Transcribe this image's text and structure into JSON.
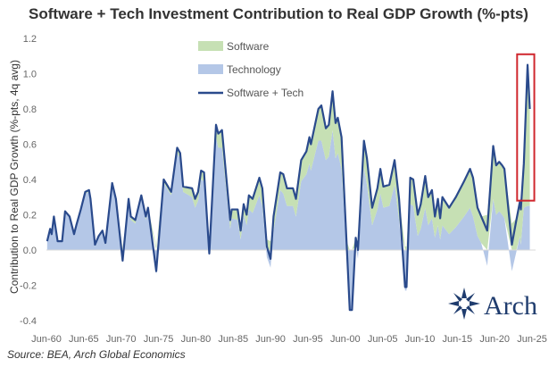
{
  "chart_data": {
    "type": "area",
    "title": "Software + Tech Investment Contribution to Real GDP Growth (%-pts)",
    "xlabel": "",
    "ylabel": "Contribution to Real GDP Growth (%-pts, 4q avg)",
    "ylim": [
      -0.4,
      1.2
    ],
    "yticks": [
      1.2,
      1.0,
      0.8,
      0.6,
      0.4,
      0.2,
      0.0,
      -0.2,
      -0.4
    ],
    "ytick_labels": [
      "1.2",
      "1.0",
      "0.8",
      "0.6",
      "0.4",
      "0.2",
      "0.0",
      "-0.2",
      "-0.4"
    ],
    "xlim": [
      1959.5,
      2026
    ],
    "xticks": [
      1960,
      1965,
      1970,
      1975,
      1980,
      1985,
      1990,
      1995,
      2000,
      2005,
      2010,
      2015,
      2020,
      2025
    ],
    "xtick_labels": [
      "Jun-60",
      "Jun-65",
      "Jun-70",
      "Jun-75",
      "Jun-80",
      "Jun-85",
      "Jun-90",
      "Jun-95",
      "Jun-00",
      "Jun-05",
      "Jun-10",
      "Jun-15",
      "Jun-20",
      "Jun-25"
    ],
    "grid": false,
    "legend_position": "top-center",
    "colors": {
      "software": "#c6e0b4",
      "technology": "#b4c7e7",
      "total": "#2a4a8c",
      "highlight": "#d0272e"
    },
    "series_names": {
      "software": "Software",
      "technology": "Technology",
      "total": "Software + Tech"
    },
    "x": [
      1960.1,
      1960.5,
      1960.7,
      1961.0,
      1961.5,
      1962.1,
      1962.5,
      1963.1,
      1963.7,
      1964.0,
      1964.6,
      1965.2,
      1965.7,
      1965.9,
      1966.5,
      1967.0,
      1967.5,
      1967.9,
      1968.8,
      1969.3,
      1970.2,
      1971.0,
      1971.3,
      1971.9,
      1972.7,
      1973.3,
      1973.6,
      1974.7,
      1975.7,
      1976.7,
      1977.5,
      1977.9,
      1978.3,
      1979.5,
      1979.9,
      1980.3,
      1980.7,
      1981.1,
      1981.8,
      1982.7,
      1983.0,
      1983.5,
      1984.6,
      1984.8,
      1985.6,
      1986.0,
      1986.4,
      1986.8,
      1987.1,
      1987.6,
      1988.5,
      1988.9,
      1989.5,
      1990.0,
      1990.4,
      1991.3,
      1991.7,
      1992.2,
      1993.0,
      1993.4,
      1994.1,
      1994.8,
      1995.2,
      1995.4,
      1996.4,
      1996.8,
      1997.4,
      1997.8,
      1998.3,
      1998.7,
      1999.0,
      1999.5,
      2000.2,
      2000.6,
      2000.9,
      2001.4,
      2001.7,
      2002.5,
      2002.9,
      2003.6,
      2004.3,
      2004.7,
      2005.1,
      2005.9,
      2006.6,
      2007.2,
      2008.0,
      2008.2,
      2008.7,
      2009.1,
      2009.7,
      2010.1,
      2010.7,
      2011.1,
      2011.6,
      2012.0,
      2012.4,
      2012.7,
      2013.0,
      2013.9,
      2014.8,
      2015.9,
      2016.7,
      2017.1,
      2017.7,
      2018.2,
      2019.0,
      2019.8,
      2020.2,
      2020.6,
      2021.0,
      2021.3,
      2022.3,
      2022.9,
      2023.4,
      2023.5,
      2023.9,
      2024.4,
      2024.7
    ],
    "total": [
      0.05,
      0.12,
      0.09,
      0.19,
      0.05,
      0.05,
      0.22,
      0.19,
      0.09,
      0.14,
      0.23,
      0.33,
      0.34,
      0.29,
      0.03,
      0.08,
      0.11,
      0.04,
      0.38,
      0.29,
      -0.06,
      0.29,
      0.19,
      0.17,
      0.31,
      0.19,
      0.24,
      -0.12,
      0.4,
      0.33,
      0.58,
      0.55,
      0.36,
      0.35,
      0.29,
      0.33,
      0.45,
      0.44,
      -0.02,
      0.71,
      0.66,
      0.68,
      0.17,
      0.23,
      0.23,
      0.11,
      0.26,
      0.2,
      0.31,
      0.29,
      0.41,
      0.35,
      0.02,
      -0.05,
      0.19,
      0.44,
      0.43,
      0.35,
      0.35,
      0.29,
      0.51,
      0.56,
      0.64,
      0.6,
      0.8,
      0.82,
      0.69,
      0.71,
      0.9,
      0.72,
      0.75,
      0.64,
      0.02,
      -0.34,
      -0.34,
      0.07,
      0.0,
      0.62,
      0.52,
      0.24,
      0.35,
      0.46,
      0.36,
      0.37,
      0.51,
      0.29,
      -0.21,
      -0.21,
      0.41,
      0.4,
      0.2,
      0.26,
      0.42,
      0.3,
      0.34,
      0.19,
      0.29,
      0.18,
      0.3,
      0.24,
      0.3,
      0.39,
      0.46,
      0.41,
      0.24,
      0.19,
      0.11,
      0.59,
      0.48,
      0.5,
      0.48,
      0.46,
      0.03,
      0.17,
      0.28,
      0.23,
      0.49,
      1.05,
      0.8
    ],
    "software": [
      0,
      0,
      0,
      0,
      0,
      0,
      0,
      0,
      0,
      0,
      0,
      0.01,
      0.01,
      0.01,
      0.01,
      0.01,
      0.01,
      0.01,
      0.01,
      0.01,
      0.01,
      0.02,
      0.02,
      0.02,
      0.02,
      0.02,
      0.02,
      0.02,
      0.02,
      0.02,
      0.03,
      0.03,
      0.03,
      0.05,
      0.05,
      0.05,
      0.05,
      0.05,
      0.02,
      0.07,
      0.08,
      0.1,
      0.05,
      0.05,
      0.06,
      0.05,
      0.06,
      0.06,
      0.08,
      0.08,
      0.1,
      0.1,
      0.06,
      0.05,
      0.08,
      0.1,
      0.11,
      0.1,
      0.1,
      0.1,
      0.12,
      0.13,
      0.15,
      0.15,
      0.18,
      0.2,
      0.18,
      0.18,
      0.22,
      0.2,
      0.2,
      0.18,
      0.05,
      0.0,
      0.0,
      0.05,
      0.05,
      0.15,
      0.15,
      0.1,
      0.12,
      0.14,
      0.12,
      0.12,
      0.14,
      0.12,
      0.02,
      0.02,
      0.15,
      0.15,
      0.12,
      0.14,
      0.18,
      0.16,
      0.16,
      0.12,
      0.15,
      0.12,
      0.16,
      0.15,
      0.17,
      0.2,
      0.22,
      0.22,
      0.16,
      0.15,
      0.2,
      0.3,
      0.28,
      0.28,
      0.28,
      0.28,
      0.15,
      0.18,
      0.2,
      0.2,
      0.25,
      0.8,
      0.55
    ],
    "highlight": {
      "x": [
        2023.0,
        2025.3
      ],
      "y": [
        0.28,
        1.11
      ]
    }
  },
  "source": "Source: BEA, Arch Global Economics",
  "logo": {
    "text": "Arch",
    "color": "#1f3c6e"
  }
}
